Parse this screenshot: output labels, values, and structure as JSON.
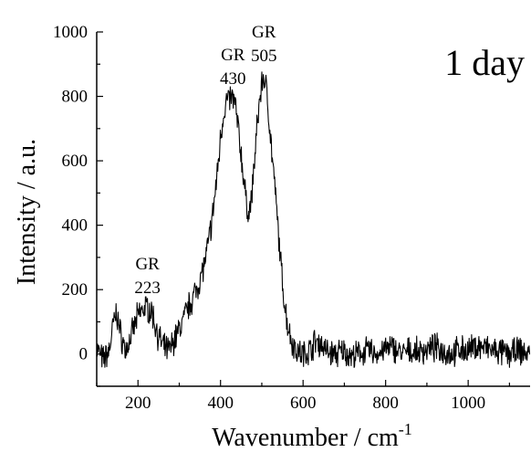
{
  "chart_data": {
    "type": "line",
    "title": "",
    "panel_label": "1 day",
    "xlabel": "Wavenumber / cm",
    "xlabel_sup": "-1",
    "ylabel": "Intensity / a.u.",
    "xlim": [
      100,
      1150
    ],
    "ylim": [
      -100,
      1000
    ],
    "x_ticks": [
      200,
      400,
      600,
      800,
      1000
    ],
    "x_tick_labels": [
      "200",
      "400",
      "600",
      "800",
      "1000"
    ],
    "y_ticks": [
      0,
      200,
      400,
      600,
      800,
      1000
    ],
    "y_tick_labels": [
      "0",
      "200",
      "400",
      "600",
      "800",
      "1000"
    ],
    "grid": false,
    "legend": "none",
    "annotations": [
      {
        "name": "GR",
        "value": "223",
        "x": 223,
        "y": 200
      },
      {
        "name": "GR",
        "value": "430",
        "x": 430,
        "y": 850
      },
      {
        "name": "GR",
        "value": "505",
        "x": 505,
        "y": 920
      }
    ],
    "series": [
      {
        "color": "#000000",
        "x": [
          100,
          115,
          130,
          140,
          148,
          158,
          170,
          185,
          200,
          212,
          223,
          235,
          248,
          262,
          275,
          290,
          305,
          320,
          335,
          350,
          365,
          380,
          392,
          402,
          412,
          420,
          426,
          432,
          437,
          442,
          448,
          455,
          462,
          468,
          474,
          480,
          487,
          494,
          500,
          505,
          510,
          516,
          522,
          530,
          540,
          550,
          560,
          570,
          580,
          590,
          600,
          615,
          630,
          645,
          660,
          680,
          700,
          720,
          740,
          760,
          780,
          800,
          820,
          840,
          860,
          880,
          900,
          920,
          940,
          960,
          980,
          1000,
          1020,
          1040,
          1060,
          1080,
          1100,
          1120,
          1150
        ],
        "y": [
          20,
          -20,
          10,
          90,
          130,
          60,
          10,
          60,
          120,
          140,
          145,
          125,
          60,
          20,
          10,
          50,
          90,
          140,
          180,
          230,
          300,
          420,
          560,
          700,
          780,
          790,
          795,
          790,
          760,
          710,
          640,
          560,
          470,
          440,
          470,
          560,
          680,
          780,
          840,
          860,
          830,
          760,
          660,
          540,
          380,
          220,
          110,
          50,
          20,
          5,
          0,
          10,
          40,
          30,
          5,
          0,
          10,
          -10,
          5,
          10,
          0,
          15,
          20,
          0,
          10,
          5,
          15,
          20,
          10,
          0,
          15,
          10,
          25,
          20,
          10,
          5,
          0,
          10,
          0
        ]
      }
    ]
  }
}
